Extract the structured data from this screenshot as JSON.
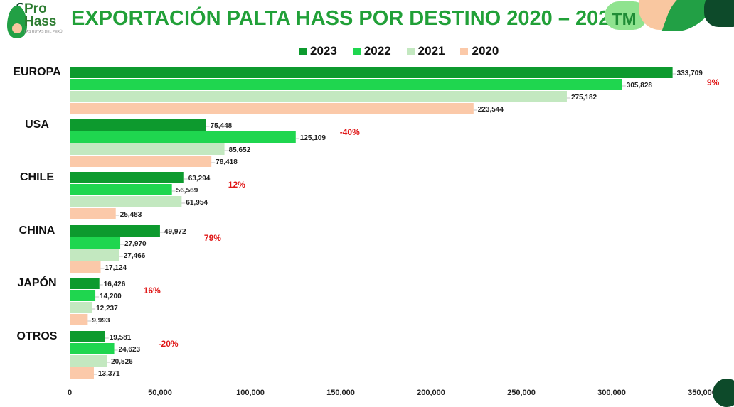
{
  "header": {
    "logo_text_1": "Pro",
    "logo_text_2": "Hass",
    "logo_sub": "LAS RUTAS DEL PERÚ",
    "title": "EXPORTACIÓN PALTA HASS POR DESTINO 2020 – 2023",
    "unit_badge": "TM"
  },
  "colors": {
    "s2023": "#0d9a2e",
    "s2022": "#1fd64f",
    "s2021": "#c3e8c0",
    "s2020": "#fbc9a9",
    "pct": "#e01818"
  },
  "chart_data": {
    "type": "bar",
    "orientation": "horizontal",
    "title": "EXPORTACIÓN PALTA HASS POR DESTINO 2020 – 2023",
    "unit": "TM",
    "categories": [
      "EUROPA",
      "USA",
      "CHILE",
      "CHINA",
      "JAPÓN",
      "OTROS"
    ],
    "series": [
      {
        "name": "2023",
        "values": [
          333709,
          75448,
          63294,
          49972,
          16426,
          19581
        ]
      },
      {
        "name": "2022",
        "values": [
          305828,
          125109,
          56569,
          27970,
          14200,
          24623
        ]
      },
      {
        "name": "2021",
        "values": [
          275182,
          85652,
          61954,
          27466,
          12237,
          20526
        ]
      },
      {
        "name": "2020",
        "values": [
          223544,
          78418,
          25483,
          17124,
          9993,
          13371
        ]
      }
    ],
    "value_labels": [
      [
        "333,709",
        "75,448",
        "63,294",
        "49,972",
        "16,426",
        "19,581"
      ],
      [
        "305,828",
        "125,109",
        "56,569",
        "27,970",
        "14,200",
        "24,623"
      ],
      [
        "275,182",
        "85,652",
        "61,954",
        "27,466",
        "12,237",
        "20,526"
      ],
      [
        "223,544",
        "78,418",
        "25,483",
        "17,124",
        "9,993",
        "13,371"
      ]
    ],
    "annotations": [
      "9%",
      "-40%",
      "12%",
      "79%",
      "16%",
      "-20%"
    ],
    "xlim": [
      0,
      350000
    ],
    "xticks": [
      0,
      50000,
      100000,
      150000,
      200000,
      250000,
      300000,
      350000
    ],
    "xtick_labels": [
      "0",
      "50,000",
      "100,000",
      "150,000",
      "200,000",
      "250,000",
      "300,000",
      "350,000"
    ],
    "legend_position": "top",
    "grid": false
  }
}
